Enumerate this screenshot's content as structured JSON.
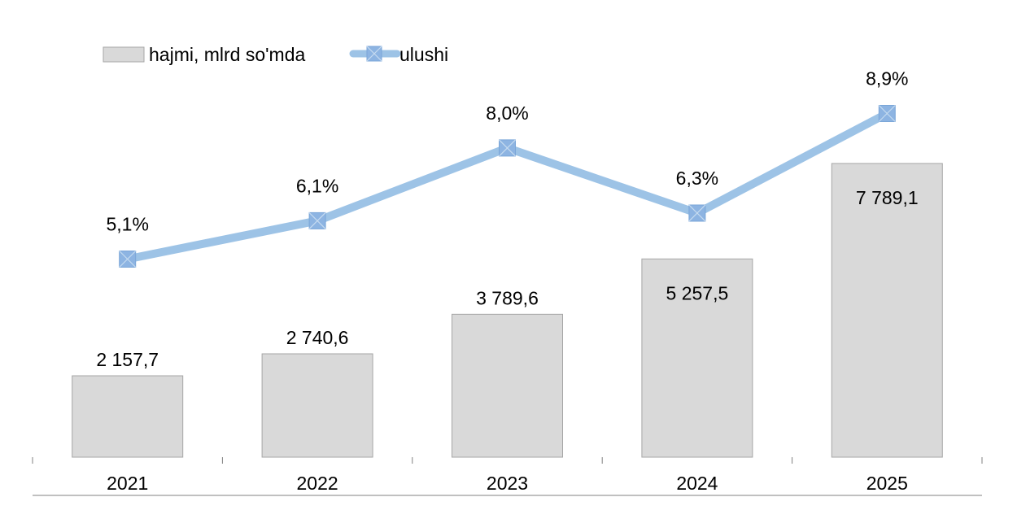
{
  "chart_data": {
    "type": "bar",
    "categories": [
      "2021",
      "2022",
      "2023",
      "2024",
      "2025"
    ],
    "series": [
      {
        "name": "hajmi, mlrd so'mda",
        "kind": "bar",
        "axis": "left",
        "values": [
          2157.7,
          2740.6,
          3789.6,
          5257.5,
          7789.1
        ],
        "labels": [
          "2 157,7",
          "2 740,6",
          "3 789,6",
          "5 257,5",
          "7 789,1"
        ],
        "color": "#d9d9d9"
      },
      {
        "name": "ulushi",
        "kind": "line",
        "axis": "right",
        "values": [
          5.1,
          6.1,
          8.0,
          6.3,
          8.9
        ],
        "labels": [
          "5,1%",
          "6,1%",
          "8,0%",
          "6,3%",
          "8,9%"
        ],
        "color": "#9dc3e6",
        "marker_color": "#8db4e2"
      }
    ],
    "y_left_range": [
      0,
      8500
    ],
    "y_right_range": [
      2,
      10.2
    ],
    "legend_position": "top-left",
    "grid": false
  }
}
